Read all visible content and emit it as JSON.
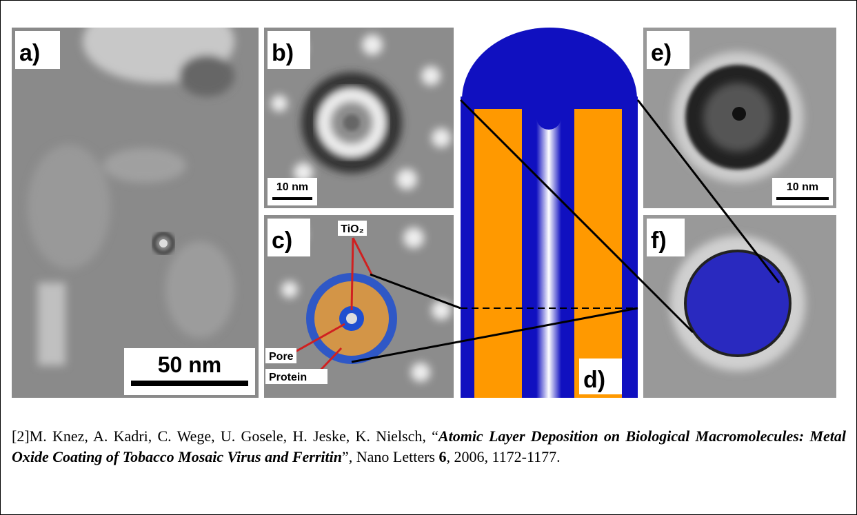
{
  "figure": {
    "panels": {
      "a": {
        "label": "a)",
        "scale_bar": "50 nm"
      },
      "b": {
        "label": "b)",
        "scale_bar": "10 nm"
      },
      "c": {
        "label": "c)",
        "annotations": [
          "TiO₂",
          "Pore",
          "Protein"
        ]
      },
      "d": {
        "label": "d)"
      },
      "e": {
        "label": "e)",
        "scale_bar": "10 nm"
      },
      "f": {
        "label": "f)"
      }
    }
  },
  "citation": {
    "authors": "[2]M. Knez, A. Kadri, C. Wege, U. Gosele, H. Jeske, K. Nielsch, “",
    "title": "Atomic Layer Deposition on Biological Macromolecules: Metal Oxide Coating of Tobacco Mosaic Virus and Ferritin",
    "after_title": "”, Nano Letters ",
    "volume": "6",
    "rest": ", 2006, 1172-1177."
  }
}
